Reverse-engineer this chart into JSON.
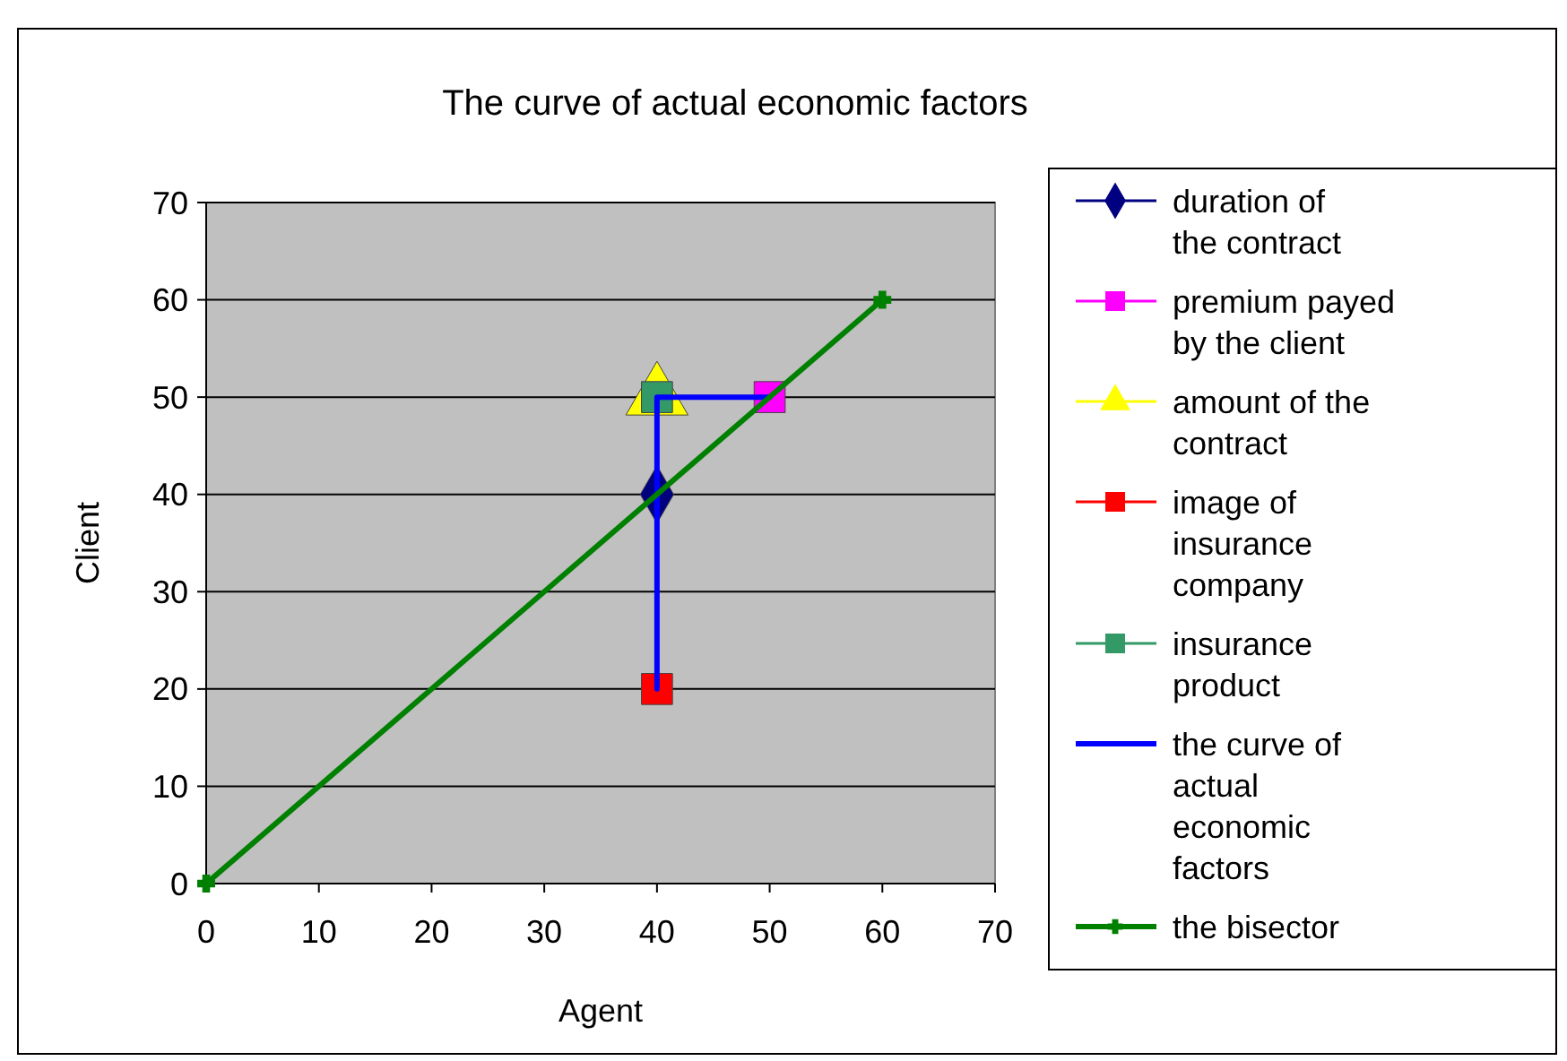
{
  "chart_data": {
    "type": "scatter",
    "title": "The curve of actual economic factors",
    "xlabel": "Agent",
    "ylabel": "Client",
    "xlim": [
      0,
      70
    ],
    "xticks": [
      0,
      10,
      20,
      30,
      40,
      50,
      60,
      70
    ],
    "ylim": [
      0,
      70
    ],
    "yticks": [
      0,
      10,
      20,
      30,
      40,
      50,
      60,
      70
    ],
    "grid": "y",
    "legend": "right",
    "series": [
      {
        "name": "duration of the contract",
        "color": "#000080",
        "marker": "diamond",
        "x": [
          40
        ],
        "values": [
          40
        ]
      },
      {
        "name": "premium payed by the client",
        "color": "#ff00ff",
        "marker": "square",
        "x": [
          50
        ],
        "values": [
          50
        ]
      },
      {
        "name": "amount of the contract",
        "color": "#ffff00",
        "marker": "triangle",
        "x": [
          40
        ],
        "values": [
          50
        ]
      },
      {
        "name": "image of insurance company",
        "color": "#ff0000",
        "marker": "square",
        "x": [
          40
        ],
        "values": [
          20
        ]
      },
      {
        "name": "insurance product",
        "color": "#339966",
        "marker": "square",
        "x": [
          40
        ],
        "values": [
          50
        ]
      },
      {
        "name": "the curve of actual economic factors",
        "type": "line",
        "color": "#0000ff",
        "marker": "none",
        "x": [
          40,
          40,
          50
        ],
        "values": [
          20,
          50,
          50
        ]
      },
      {
        "name": "the bisector",
        "type": "line",
        "color": "#008000",
        "marker": "cross",
        "x": [
          0,
          60
        ],
        "values": [
          0,
          60
        ]
      }
    ]
  }
}
